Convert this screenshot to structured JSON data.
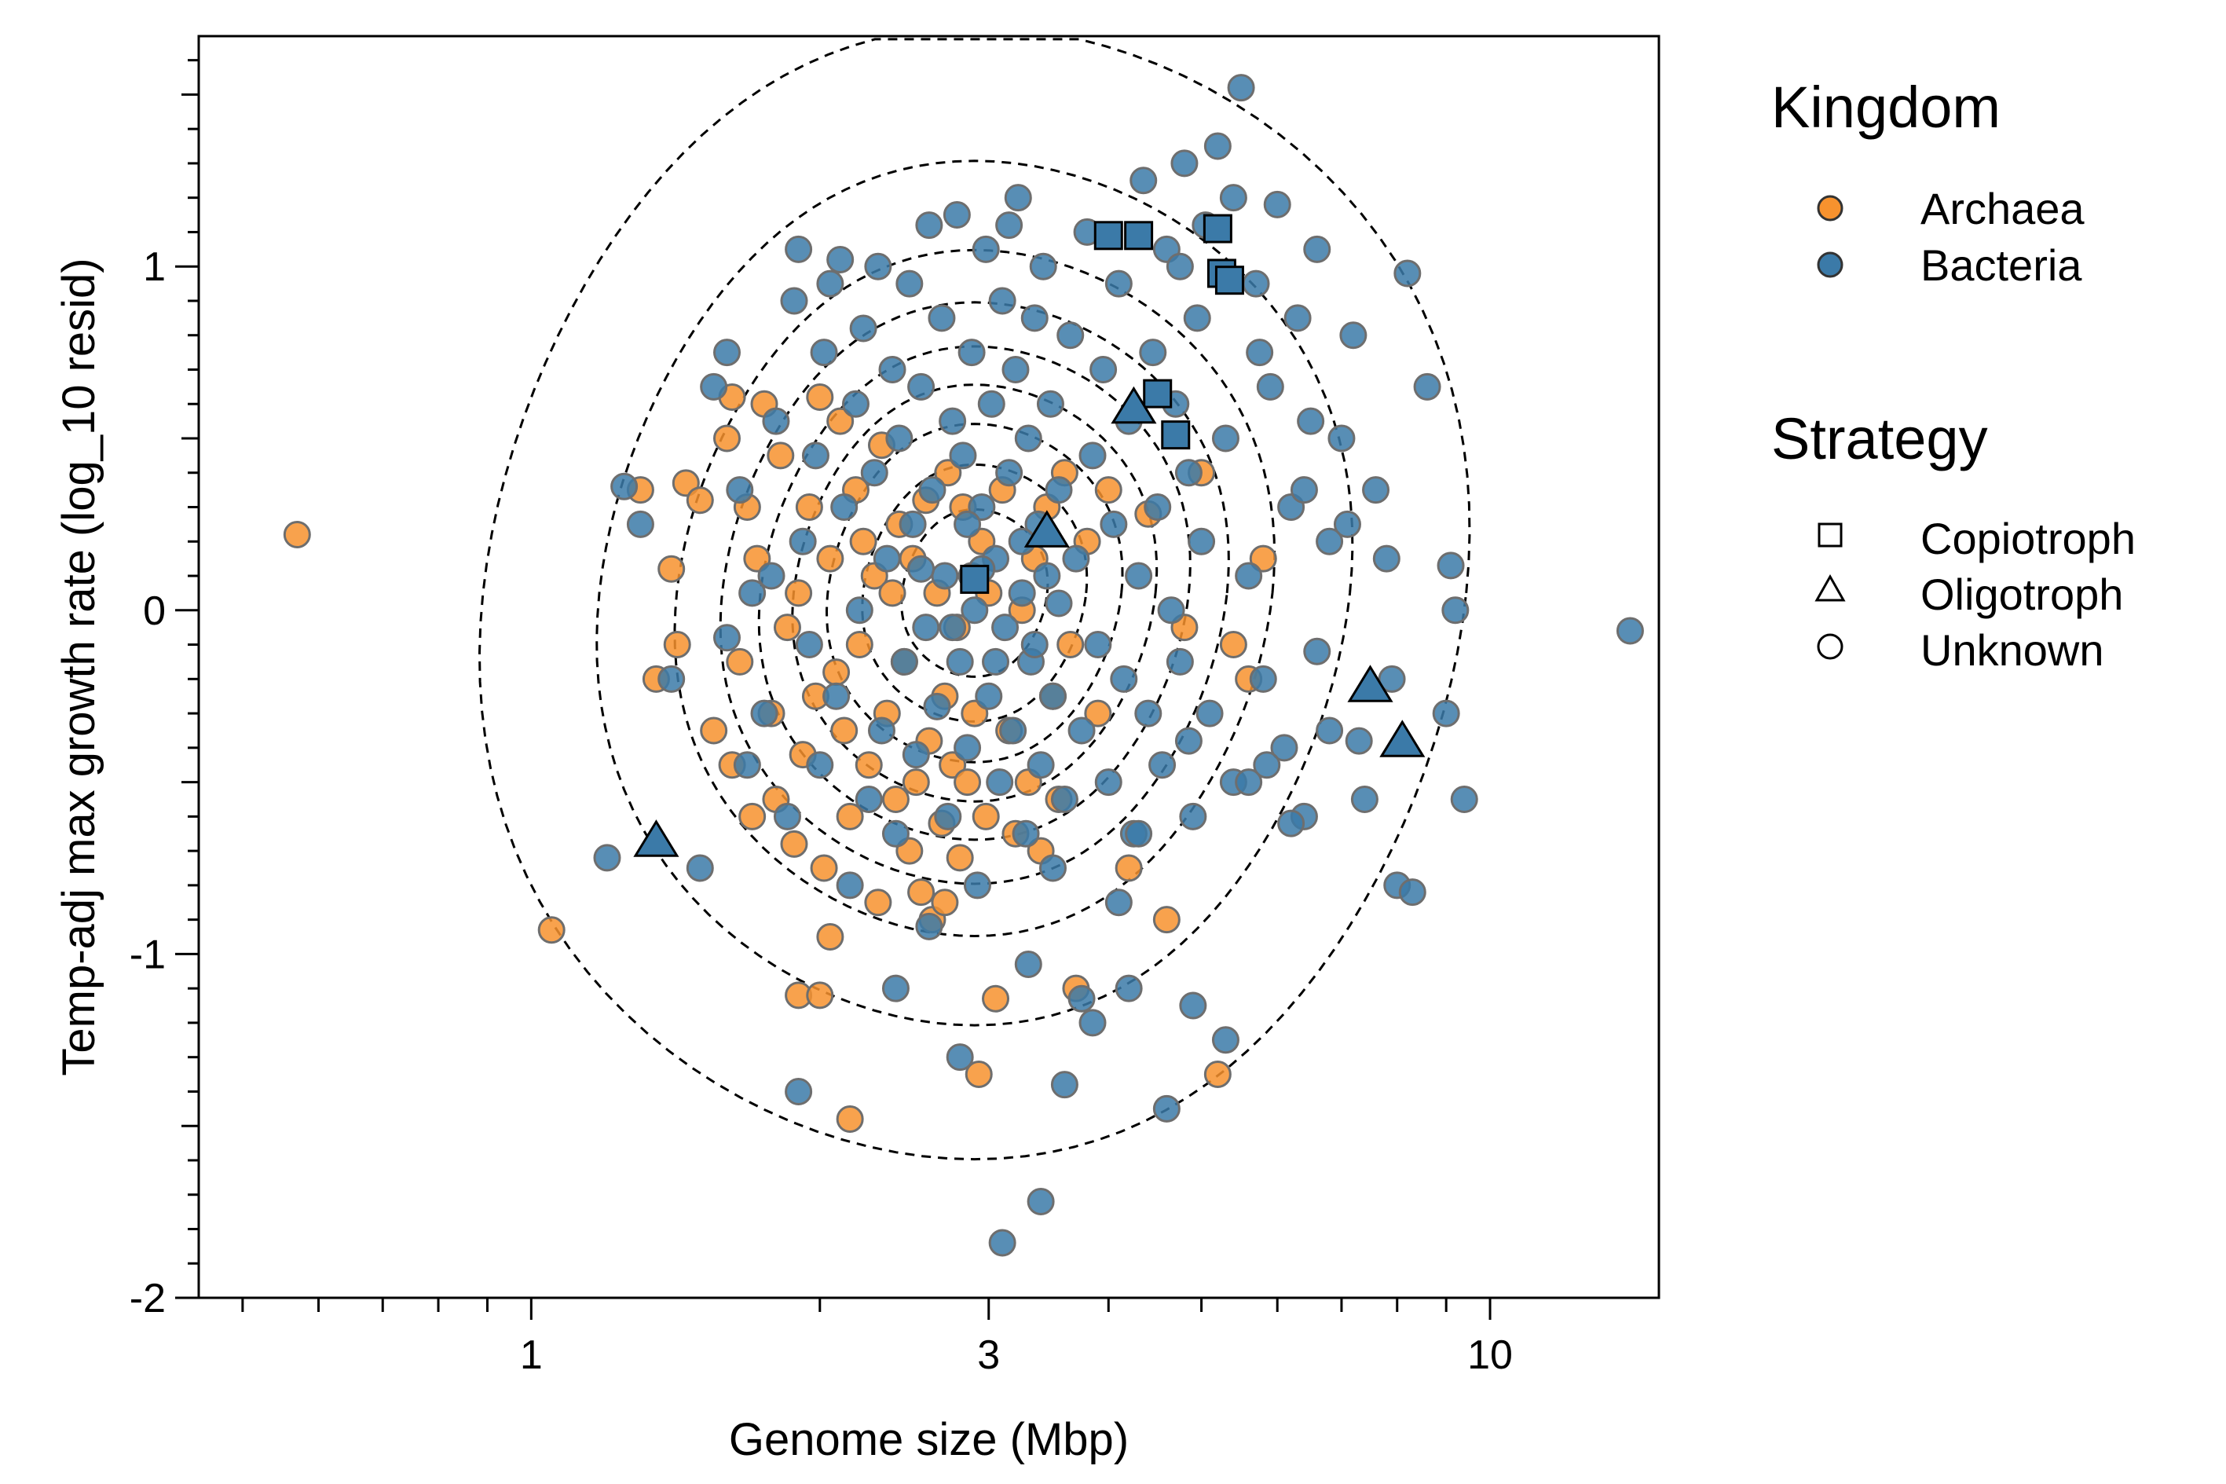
{
  "chart_data": {
    "type": "scatter",
    "xlabel": "Genome size (Mbp)",
    "ylabel": "Temp-adj max growth rate (log_10 resid)",
    "xscale": "log",
    "xlim": [
      0.45,
      15
    ],
    "ylim": [
      -2,
      1.67
    ],
    "x_ticks": [
      {
        "value": 1,
        "label": "1"
      },
      {
        "value": 3,
        "label": "3"
      },
      {
        "value": 10,
        "label": "10"
      }
    ],
    "y_ticks": [
      {
        "value": -2,
        "label": "-2"
      },
      {
        "value": -1,
        "label": "-1"
      },
      {
        "value": 0,
        "label": "0"
      },
      {
        "value": 1,
        "label": "1"
      }
    ],
    "grid": false,
    "legend_placement": "right",
    "colors": {
      "Archaea": "#F7922E",
      "Bacteria": "#3B7AA8",
      "stroke_points": "#6E6E6E",
      "contour": "#000000"
    },
    "legend": {
      "kingdom": {
        "title": "Kingdom",
        "entries": [
          {
            "label": "Archaea",
            "color": "#F7922E"
          },
          {
            "label": "Bacteria",
            "color": "#3B7AA8"
          }
        ]
      },
      "strategy": {
        "title": "Strategy",
        "entries": [
          {
            "label": "Copiotroph",
            "shape": "square"
          },
          {
            "label": "Oligotroph",
            "shape": "triangle"
          },
          {
            "label": "Unknown",
            "shape": "circle"
          }
        ]
      }
    },
    "density_contours": {
      "center": [
        2.9,
        0.05
      ],
      "sigma_log10": [
        0.165,
        0.53
      ],
      "levels": [
        0.9,
        0.78,
        0.65,
        0.52,
        0.4,
        0.28,
        0.17,
        0.06,
        0.008
      ]
    },
    "series": [
      {
        "name": "Archaea",
        "strategy": "Unknown",
        "points": [
          [
            0.57,
            0.22
          ],
          [
            1.05,
            -0.93
          ],
          [
            1.3,
            0.35
          ],
          [
            1.35,
            -0.2
          ],
          [
            1.4,
            0.12
          ],
          [
            1.42,
            -0.1
          ],
          [
            1.45,
            0.37
          ],
          [
            1.55,
            -0.35
          ],
          [
            1.6,
            0.5
          ],
          [
            1.62,
            -0.45
          ],
          [
            1.65,
            -0.15
          ],
          [
            1.68,
            0.3
          ],
          [
            1.7,
            -0.6
          ],
          [
            1.72,
            0.15
          ],
          [
            1.75,
            0.6
          ],
          [
            1.78,
            -0.3
          ],
          [
            1.8,
            -0.55
          ],
          [
            1.82,
            0.45
          ],
          [
            1.85,
            -0.05
          ],
          [
            1.88,
            -0.68
          ],
          [
            1.9,
            0.05
          ],
          [
            1.92,
            -0.42
          ],
          [
            1.95,
            0.3
          ],
          [
            1.98,
            -0.25
          ],
          [
            2.0,
            0.62
          ],
          [
            2.02,
            -0.75
          ],
          [
            2.05,
            0.15
          ],
          [
            2.08,
            -0.18
          ],
          [
            2.1,
            0.55
          ],
          [
            2.12,
            -0.35
          ],
          [
            2.15,
            -0.6
          ],
          [
            2.18,
            0.35
          ],
          [
            2.2,
            -0.1
          ],
          [
            2.22,
            0.2
          ],
          [
            2.25,
            -0.45
          ],
          [
            2.28,
            0.1
          ],
          [
            2.3,
            -0.85
          ],
          [
            2.32,
            0.48
          ],
          [
            2.35,
            -0.3
          ],
          [
            2.38,
            0.05
          ],
          [
            2.4,
            -0.55
          ],
          [
            2.42,
            0.25
          ],
          [
            2.45,
            -0.15
          ],
          [
            2.48,
            -0.7
          ],
          [
            2.5,
            0.15
          ],
          [
            2.52,
            -0.5
          ],
          [
            2.55,
            -0.82
          ],
          [
            2.58,
            0.32
          ],
          [
            2.6,
            -0.38
          ],
          [
            2.62,
            -0.9
          ],
          [
            2.65,
            0.05
          ],
          [
            2.68,
            -0.62
          ],
          [
            2.7,
            -0.25
          ],
          [
            2.72,
            0.4
          ],
          [
            2.75,
            -0.45
          ],
          [
            2.78,
            -0.05
          ],
          [
            2.8,
            -0.72
          ],
          [
            2.82,
            0.3
          ],
          [
            2.85,
            -0.5
          ],
          [
            2.88,
            0.1
          ],
          [
            2.9,
            -0.3
          ],
          [
            2.93,
            -1.35
          ],
          [
            2.95,
            0.2
          ],
          [
            2.98,
            -0.6
          ],
          [
            3.0,
            0.05
          ],
          [
            3.05,
            -1.13
          ],
          [
            3.1,
            0.35
          ],
          [
            3.15,
            -0.35
          ],
          [
            3.2,
            -0.65
          ],
          [
            3.25,
            0.0
          ],
          [
            3.3,
            -0.5
          ],
          [
            3.35,
            0.15
          ],
          [
            3.4,
            -0.7
          ],
          [
            3.45,
            0.3
          ],
          [
            3.5,
            -0.25
          ],
          [
            3.55,
            -0.55
          ],
          [
            3.6,
            0.4
          ],
          [
            3.7,
            -1.1
          ],
          [
            3.8,
            0.2
          ],
          [
            3.9,
            -0.3
          ],
          [
            4.0,
            0.35
          ],
          [
            4.2,
            -0.75
          ],
          [
            4.4,
            0.28
          ],
          [
            4.6,
            -0.9
          ],
          [
            4.8,
            -0.05
          ],
          [
            5.0,
            0.4
          ],
          [
            5.2,
            -1.35
          ],
          [
            5.4,
            -0.1
          ],
          [
            5.6,
            -0.2
          ],
          [
            5.8,
            0.15
          ],
          [
            2.05,
            -0.95
          ],
          [
            1.9,
            -1.12
          ],
          [
            2.0,
            -1.12
          ],
          [
            2.15,
            -1.48
          ],
          [
            2.7,
            -0.85
          ],
          [
            3.65,
            -0.1
          ],
          [
            1.5,
            0.32
          ],
          [
            1.62,
            0.62
          ]
        ]
      },
      {
        "name": "Bacteria",
        "strategy": "Unknown",
        "points": [
          [
            1.2,
            -0.72
          ],
          [
            1.4,
            -0.2
          ],
          [
            1.5,
            -0.75
          ],
          [
            1.55,
            0.65
          ],
          [
            1.6,
            0.75
          ],
          [
            1.65,
            0.35
          ],
          [
            1.68,
            -0.45
          ],
          [
            1.7,
            0.05
          ],
          [
            1.75,
            -0.3
          ],
          [
            1.8,
            0.55
          ],
          [
            1.85,
            -0.6
          ],
          [
            1.88,
            0.9
          ],
          [
            1.9,
            1.05
          ],
          [
            1.92,
            0.2
          ],
          [
            1.95,
            -0.1
          ],
          [
            1.98,
            0.45
          ],
          [
            2.0,
            -0.45
          ],
          [
            2.02,
            0.75
          ],
          [
            2.05,
            0.95
          ],
          [
            2.08,
            -0.25
          ],
          [
            2.1,
            1.02
          ],
          [
            2.12,
            0.3
          ],
          [
            2.15,
            -0.8
          ],
          [
            2.18,
            0.6
          ],
          [
            2.2,
            0.0
          ],
          [
            2.22,
            0.82
          ],
          [
            2.25,
            -0.55
          ],
          [
            2.28,
            0.4
          ],
          [
            2.3,
            1.0
          ],
          [
            2.32,
            -0.35
          ],
          [
            2.35,
            0.15
          ],
          [
            2.38,
            0.7
          ],
          [
            2.4,
            -0.65
          ],
          [
            2.42,
            0.5
          ],
          [
            2.45,
            -0.15
          ],
          [
            2.48,
            0.95
          ],
          [
            2.5,
            0.25
          ],
          [
            2.52,
            -0.42
          ],
          [
            2.55,
            0.65
          ],
          [
            2.58,
            -0.05
          ],
          [
            2.6,
            1.12
          ],
          [
            2.62,
            0.35
          ],
          [
            2.65,
            -0.28
          ],
          [
            2.68,
            0.85
          ],
          [
            2.7,
            0.1
          ],
          [
            2.72,
            -0.6
          ],
          [
            2.75,
            0.55
          ],
          [
            2.78,
            1.15
          ],
          [
            2.8,
            -0.15
          ],
          [
            2.82,
            0.45
          ],
          [
            2.85,
            -0.4
          ],
          [
            2.88,
            0.75
          ],
          [
            2.9,
            0.0
          ],
          [
            2.92,
            -0.8
          ],
          [
            2.95,
            0.3
          ],
          [
            2.98,
            1.05
          ],
          [
            3.0,
            -0.25
          ],
          [
            3.02,
            0.6
          ],
          [
            3.05,
            0.15
          ],
          [
            3.08,
            -0.5
          ],
          [
            3.1,
            0.9
          ],
          [
            3.12,
            -0.05
          ],
          [
            3.15,
            0.4
          ],
          [
            3.18,
            -0.35
          ],
          [
            3.2,
            0.7
          ],
          [
            3.22,
            1.2
          ],
          [
            3.25,
            0.05
          ],
          [
            3.28,
            -0.65
          ],
          [
            3.3,
            0.5
          ],
          [
            3.32,
            -0.15
          ],
          [
            3.35,
            0.85
          ],
          [
            3.38,
            0.25
          ],
          [
            3.4,
            -0.45
          ],
          [
            3.42,
            1.0
          ],
          [
            3.45,
            0.1
          ],
          [
            3.48,
            0.6
          ],
          [
            3.5,
            -0.25
          ],
          [
            3.55,
            0.35
          ],
          [
            3.6,
            -0.55
          ],
          [
            3.65,
            0.8
          ],
          [
            3.7,
            0.15
          ],
          [
            3.75,
            -0.35
          ],
          [
            3.8,
            1.1
          ],
          [
            3.85,
            0.45
          ],
          [
            3.9,
            -0.1
          ],
          [
            3.95,
            0.7
          ],
          [
            4.0,
            -0.5
          ],
          [
            4.05,
            0.25
          ],
          [
            4.1,
            0.95
          ],
          [
            4.15,
            -0.2
          ],
          [
            4.2,
            0.55
          ],
          [
            4.25,
            -0.65
          ],
          [
            4.3,
            0.1
          ],
          [
            4.35,
            1.25
          ],
          [
            4.4,
            -0.3
          ],
          [
            4.45,
            0.75
          ],
          [
            4.5,
            0.3
          ],
          [
            4.55,
            -0.45
          ],
          [
            4.6,
            1.05
          ],
          [
            4.65,
            0.0
          ],
          [
            4.7,
            0.6
          ],
          [
            4.75,
            -0.15
          ],
          [
            4.8,
            1.3
          ],
          [
            4.85,
            0.4
          ],
          [
            4.9,
            -0.6
          ],
          [
            4.95,
            0.85
          ],
          [
            5.0,
            0.2
          ],
          [
            5.1,
            -0.3
          ],
          [
            5.2,
            1.35
          ],
          [
            5.3,
            0.5
          ],
          [
            5.4,
            -0.5
          ],
          [
            5.5,
            1.52
          ],
          [
            5.6,
            0.1
          ],
          [
            5.7,
            0.95
          ],
          [
            5.8,
            -0.2
          ],
          [
            5.9,
            0.65
          ],
          [
            6.0,
            1.18
          ],
          [
            6.1,
            -0.4
          ],
          [
            6.2,
            0.3
          ],
          [
            6.3,
            0.85
          ],
          [
            6.4,
            -0.6
          ],
          [
            6.5,
            0.55
          ],
          [
            6.6,
            1.05
          ],
          [
            6.8,
            -0.35
          ],
          [
            7.0,
            0.5
          ],
          [
            7.2,
            0.8
          ],
          [
            7.4,
            -0.55
          ],
          [
            7.6,
            0.35
          ],
          [
            7.8,
            0.15
          ],
          [
            8.0,
            -0.8
          ],
          [
            8.3,
            -0.82
          ],
          [
            8.6,
            0.65
          ],
          [
            9.0,
            -0.3
          ],
          [
            9.2,
            0.0
          ],
          [
            9.4,
            -0.55
          ],
          [
            8.2,
            0.98
          ],
          [
            9.1,
            0.13
          ],
          [
            14.0,
            -0.06
          ],
          [
            5.3,
            -1.25
          ],
          [
            4.6,
            -1.45
          ],
          [
            4.2,
            -1.1
          ],
          [
            3.6,
            -1.38
          ],
          [
            3.4,
            -1.72
          ],
          [
            3.1,
            -1.84
          ],
          [
            2.8,
            -1.3
          ],
          [
            1.9,
            -1.4
          ],
          [
            3.85,
            -1.2
          ],
          [
            4.9,
            -1.15
          ],
          [
            2.4,
            -1.1
          ],
          [
            3.3,
            -1.03
          ],
          [
            3.75,
            -1.13
          ],
          [
            4.3,
            -0.65
          ],
          [
            4.1,
            -0.85
          ],
          [
            5.6,
            -0.5
          ],
          [
            6.2,
            -0.62
          ],
          [
            6.8,
            0.2
          ],
          [
            5.05,
            1.12
          ],
          [
            5.4,
            1.2
          ],
          [
            3.15,
            1.12
          ],
          [
            4.75,
            1.0
          ],
          [
            2.55,
            0.12
          ],
          [
            2.75,
            -0.05
          ],
          [
            3.35,
            -0.1
          ],
          [
            2.95,
            0.12
          ],
          [
            3.05,
            -0.15
          ],
          [
            3.25,
            0.2
          ],
          [
            2.85,
            0.25
          ],
          [
            3.55,
            0.02
          ],
          [
            1.3,
            0.25
          ],
          [
            1.25,
            0.36
          ],
          [
            1.6,
            -0.08
          ],
          [
            1.78,
            0.1
          ],
          [
            2.6,
            -0.92
          ],
          [
            3.5,
            -0.75
          ],
          [
            4.85,
            -0.38
          ],
          [
            5.85,
            -0.45
          ],
          [
            6.6,
            -0.12
          ],
          [
            7.3,
            -0.38
          ],
          [
            7.9,
            -0.2
          ],
          [
            7.1,
            0.25
          ],
          [
            6.4,
            0.35
          ],
          [
            5.75,
            0.75
          ]
        ]
      },
      {
        "name": "Bacteria",
        "strategy": "Copiotroph",
        "points": [
          [
            2.9,
            0.09
          ],
          [
            4.0,
            1.09
          ],
          [
            4.3,
            1.09
          ],
          [
            4.5,
            0.63
          ],
          [
            4.7,
            0.51
          ],
          [
            5.2,
            1.11
          ],
          [
            5.25,
            0.98
          ],
          [
            5.35,
            0.96
          ]
        ]
      },
      {
        "name": "Bacteria",
        "strategy": "Oligotroph",
        "points": [
          [
            1.35,
            -0.67
          ],
          [
            3.45,
            0.23
          ],
          [
            4.25,
            0.59
          ],
          [
            7.5,
            -0.22
          ],
          [
            8.1,
            -0.38
          ]
        ]
      }
    ]
  }
}
